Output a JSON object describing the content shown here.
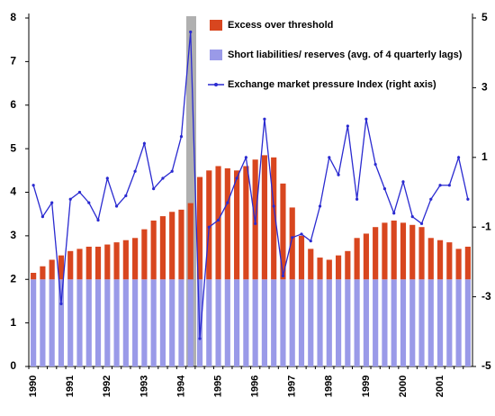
{
  "chart_data": {
    "type": "bar-line",
    "categories": [
      "1990",
      null,
      null,
      null,
      "1991",
      null,
      null,
      null,
      "1992",
      null,
      null,
      null,
      "1993",
      null,
      null,
      null,
      "1994",
      null,
      null,
      null,
      "1995",
      null,
      null,
      null,
      "1996",
      null,
      null,
      null,
      "1997",
      null,
      null,
      null,
      "1998",
      null,
      null,
      null,
      "1999",
      null,
      null,
      null,
      "2000",
      null,
      null,
      null,
      "2001",
      null,
      null,
      null
    ],
    "series": [
      {
        "name": "Excess over threshold",
        "type": "bar",
        "color": "#d8461f",
        "axis": "y",
        "values": [
          0.15,
          0.3,
          0.45,
          0.55,
          0.65,
          0.7,
          0.75,
          0.75,
          0.8,
          0.85,
          0.9,
          0.95,
          1.15,
          1.35,
          1.45,
          1.55,
          1.6,
          1.75,
          2.35,
          2.5,
          2.6,
          2.55,
          2.5,
          2.6,
          2.75,
          2.85,
          2.8,
          2.2,
          1.65,
          1.0,
          0.7,
          0.5,
          0.45,
          0.55,
          0.65,
          0.95,
          1.05,
          1.2,
          1.3,
          1.35,
          1.3,
          1.25,
          1.2,
          0.95,
          0.9,
          0.85,
          0.7,
          0.75
        ]
      },
      {
        "name": "Short liabilities/ reserves (avg. of 4 quarterly lags)",
        "type": "bar",
        "color": "#9a9ae8",
        "axis": "y",
        "values": [
          2,
          2,
          2,
          2,
          2,
          2,
          2,
          2,
          2,
          2,
          2,
          2,
          2,
          2,
          2,
          2,
          2,
          2,
          2,
          2,
          2,
          2,
          2,
          2,
          2,
          2,
          2,
          2,
          2,
          2,
          2,
          2,
          2,
          2,
          2,
          2,
          2,
          2,
          2,
          2,
          2,
          2,
          2,
          2,
          2,
          2,
          2,
          2
        ]
      },
      {
        "name": "Exchange market pressure Index (right axis)",
        "type": "line",
        "color": "#2a2ad0",
        "axis": "y2",
        "values": [
          0.2,
          -0.7,
          -0.3,
          -3.2,
          -0.2,
          0,
          -0.3,
          -0.8,
          0.4,
          -0.4,
          -0.1,
          0.6,
          1.4,
          0.1,
          0.4,
          0.6,
          1.6,
          4.6,
          -4.2,
          -1.0,
          -0.8,
          -0.3,
          0.4,
          1.0,
          -0.9,
          2.1,
          -0.4,
          -2.4,
          -1.3,
          -1.2,
          -1.4,
          -0.4,
          1.0,
          0.5,
          1.9,
          -0.2,
          2.1,
          0.8,
          0.1,
          -0.6,
          0.3,
          -0.7,
          -0.9,
          -0.2,
          0.2,
          0.2,
          1.0,
          -0.2
        ]
      }
    ],
    "ylim": [
      0,
      8
    ],
    "yticks": [
      0,
      1,
      2,
      3,
      4,
      5,
      6,
      7,
      8
    ],
    "y2lim": [
      -5,
      5
    ],
    "y2ticks": [
      -5,
      -3,
      -1,
      1,
      3,
      5
    ]
  }
}
